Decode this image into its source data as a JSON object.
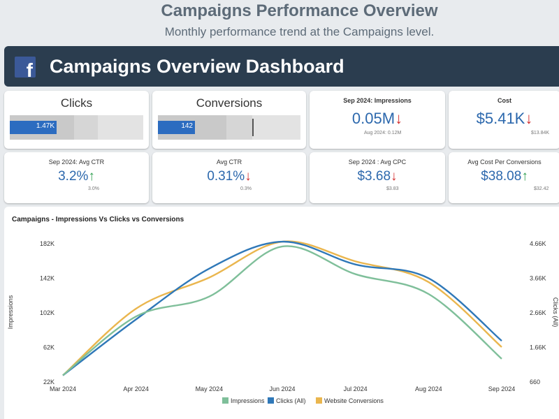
{
  "header": {
    "title": "Campaigns Performance Overview",
    "subtitle": "Monthly performance trend at the Campaigns level."
  },
  "banner": {
    "icon": "facebook-icon",
    "icon_glyph": "f",
    "title": "Campaigns Overview Dashboard"
  },
  "colors": {
    "banner_bg": "#2b3d4f",
    "value_blue": "#2c68ad",
    "down_red": "#d32f2f",
    "up_green": "#2e9e4f",
    "impressions": "#7fbf9a",
    "clicks": "#2f78b8",
    "conversions": "#eab64e"
  },
  "kpis": {
    "clicks": {
      "title": "Clicks",
      "value": "1.47K",
      "fraction": 0.35
    },
    "conversions": {
      "title": "Conversions",
      "value": "142",
      "fraction": 0.26,
      "target_fraction": 0.66
    },
    "impressions": {
      "title": "Sep 2024: Impressions",
      "value": "0.05M",
      "arrow": "↓",
      "prev": "Aug 2024: 0.12M"
    },
    "cost": {
      "title": "Cost",
      "value": "$5.41K",
      "arrow": "↓",
      "prev": "$13.84K"
    },
    "avg_ctr_sep": {
      "title": "Sep 2024: Avg CTR",
      "value": "3.2%",
      "arrow": "↑",
      "prev": "3.0%"
    },
    "avg_ctr": {
      "title": "Avg CTR",
      "value": "0.31%",
      "arrow": "↓",
      "prev": "0.3%"
    },
    "avg_cpc_sep": {
      "title": "Sep 2024 : Avg CPC",
      "value": "$3.68",
      "arrow": "↓",
      "prev": "$3.83"
    },
    "avg_cost_per_conv": {
      "title": "Avg Cost Per Conversions",
      "value": "$38.08",
      "arrow": "↑",
      "prev": "$32.42"
    }
  },
  "chart_data": {
    "type": "line",
    "title": "Campaigns - Impressions Vs Clicks vs Conversions",
    "categories": [
      "Mar 2024",
      "Apr 2024",
      "May 2024",
      "Jun 2024",
      "Jul 2024",
      "Aug 2024",
      "Sep 2024"
    ],
    "ylabel": "Impressions",
    "y2label": "Clicks (All)",
    "ylim": [
      22000,
      182000
    ],
    "y2lim": [
      660,
      4660
    ],
    "yticks": [
      "22K",
      "62K",
      "102K",
      "142K",
      "182K"
    ],
    "y2ticks": [
      "660",
      "1.66K",
      "2.66K",
      "3.66K",
      "4.66K"
    ],
    "series": [
      {
        "name": "Impressions",
        "axis": "left",
        "values": [
          29000,
          97000,
          120000,
          178000,
          146000,
          123000,
          48000
        ]
      },
      {
        "name": "Clicks (All)",
        "axis": "right",
        "values": [
          830,
          2450,
          3920,
          4700,
          4040,
          3640,
          1830
        ]
      },
      {
        "name": "Website Conversions",
        "axis": "right",
        "values": [
          830,
          2760,
          3660,
          4700,
          4130,
          3530,
          1650
        ]
      }
    ]
  }
}
